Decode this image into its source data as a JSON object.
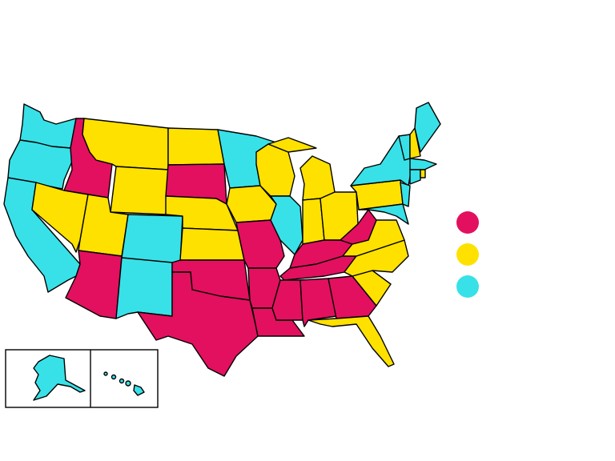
{
  "legend": [
    {
      "color": "#e2105f"
    },
    {
      "color": "#ffe100"
    },
    {
      "color": "#38e1e8"
    }
  ]
}
